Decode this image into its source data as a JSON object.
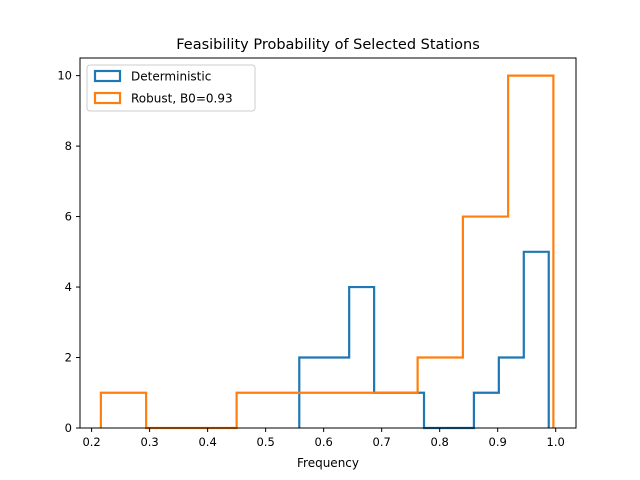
{
  "chart_data": {
    "type": "histogram",
    "title": "Feasibility Probability of Selected Stations",
    "xlabel": "Frequency",
    "ylabel": "",
    "xlim": [
      0.18,
      1.035
    ],
    "ylim": [
      0,
      10.5
    ],
    "xticks": [
      0.2,
      0.3,
      0.4,
      0.5,
      0.6,
      0.7,
      0.8,
      0.9,
      1.0
    ],
    "xtick_labels": [
      "0.2",
      "0.3",
      "0.4",
      "0.5",
      "0.6",
      "0.7",
      "0.8",
      "0.9",
      "1.0"
    ],
    "yticks": [
      0,
      2,
      4,
      6,
      8,
      10
    ],
    "ytick_labels": [
      "0",
      "2",
      "4",
      "6",
      "8",
      "10"
    ],
    "grid": false,
    "legend_position": "upper-left",
    "series": [
      {
        "name": "Deterministic",
        "color": "#1f77b4",
        "bin_edges": [
          0.558,
          0.601,
          0.644,
          0.687,
          0.73,
          0.773,
          0.816,
          0.859,
          0.902,
          0.945,
          0.988
        ],
        "counts": [
          2,
          2,
          4,
          1,
          1,
          0,
          0,
          1,
          2,
          5
        ]
      },
      {
        "name": "Robust, B0=0.93",
        "color": "#ff7f0e",
        "bin_edges": [
          0.216,
          0.294,
          0.372,
          0.45,
          0.528,
          0.606,
          0.684,
          0.762,
          0.84,
          0.918,
          0.996
        ],
        "counts": [
          1,
          0,
          0,
          1,
          1,
          1,
          1,
          2,
          6,
          10
        ]
      }
    ]
  }
}
